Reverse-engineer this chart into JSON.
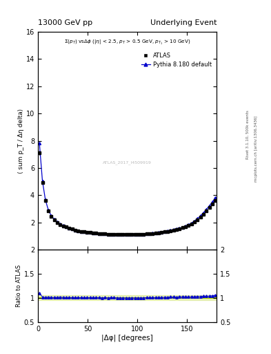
{
  "title_left": "13000 GeV pp",
  "title_right": "Underlying Event",
  "right_label_top": "Rivet 3.1.10, 500k events",
  "right_label_bottom": "mcplots.cern.ch [arXiv:1306.3436]",
  "watermark": "ATLAS_2017_I4509919",
  "xlabel": "|Δφ| [degrees]",
  "ylabel": "⟨ sum p_T / Δη delta⟩",
  "ylabel_ratio": "Ratio to ATLAS",
  "ylim_main": [
    0,
    16
  ],
  "ylim_ratio": [
    0.5,
    2.0
  ],
  "yticks_main": [
    2,
    4,
    6,
    8,
    10,
    12,
    14,
    16
  ],
  "yticks_ratio": [
    0.5,
    1.0,
    1.5,
    2.0
  ],
  "xlim": [
    0,
    180
  ],
  "xticks": [
    0,
    50,
    100,
    150
  ],
  "data_x": [
    1.5,
    4.5,
    7.5,
    10.5,
    13.5,
    16.5,
    19.5,
    22.5,
    25.5,
    28.5,
    31.5,
    34.5,
    37.5,
    40.5,
    43.5,
    46.5,
    49.5,
    52.5,
    55.5,
    58.5,
    61.5,
    64.5,
    67.5,
    70.5,
    73.5,
    76.5,
    79.5,
    82.5,
    85.5,
    88.5,
    91.5,
    94.5,
    97.5,
    100.5,
    103.5,
    106.5,
    109.5,
    112.5,
    115.5,
    118.5,
    121.5,
    124.5,
    127.5,
    130.5,
    133.5,
    136.5,
    139.5,
    142.5,
    145.5,
    148.5,
    151.5,
    154.5,
    157.5,
    160.5,
    163.5,
    166.5,
    169.5,
    172.5,
    175.5,
    178.5
  ],
  "data_y": [
    7.1,
    4.95,
    3.6,
    2.85,
    2.45,
    2.2,
    2.0,
    1.85,
    1.75,
    1.65,
    1.55,
    1.5,
    1.42,
    1.38,
    1.33,
    1.3,
    1.27,
    1.25,
    1.22,
    1.2,
    1.18,
    1.17,
    1.15,
    1.14,
    1.13,
    1.12,
    1.12,
    1.11,
    1.11,
    1.1,
    1.11,
    1.11,
    1.12,
    1.12,
    1.13,
    1.14,
    1.15,
    1.17,
    1.19,
    1.21,
    1.23,
    1.27,
    1.3,
    1.33,
    1.37,
    1.42,
    1.47,
    1.52,
    1.6,
    1.68,
    1.78,
    1.9,
    2.05,
    2.2,
    2.4,
    2.6,
    2.85,
    3.1,
    3.35,
    3.6
  ],
  "data_yerr": [
    0.15,
    0.08,
    0.06,
    0.05,
    0.04,
    0.04,
    0.03,
    0.03,
    0.03,
    0.02,
    0.02,
    0.02,
    0.02,
    0.02,
    0.02,
    0.02,
    0.02,
    0.02,
    0.02,
    0.02,
    0.02,
    0.02,
    0.02,
    0.02,
    0.02,
    0.02,
    0.02,
    0.02,
    0.02,
    0.02,
    0.02,
    0.02,
    0.02,
    0.02,
    0.02,
    0.02,
    0.02,
    0.02,
    0.02,
    0.02,
    0.02,
    0.02,
    0.02,
    0.02,
    0.02,
    0.02,
    0.02,
    0.02,
    0.02,
    0.02,
    0.03,
    0.03,
    0.03,
    0.04,
    0.04,
    0.05,
    0.06,
    0.07,
    0.08,
    0.1
  ],
  "mc_x": [
    1.5,
    4.5,
    7.5,
    10.5,
    13.5,
    16.5,
    19.5,
    22.5,
    25.5,
    28.5,
    31.5,
    34.5,
    37.5,
    40.5,
    43.5,
    46.5,
    49.5,
    52.5,
    55.5,
    58.5,
    61.5,
    64.5,
    67.5,
    70.5,
    73.5,
    76.5,
    79.5,
    82.5,
    85.5,
    88.5,
    91.5,
    94.5,
    97.5,
    100.5,
    103.5,
    106.5,
    109.5,
    112.5,
    115.5,
    118.5,
    121.5,
    124.5,
    127.5,
    130.5,
    133.5,
    136.5,
    139.5,
    142.5,
    145.5,
    148.5,
    151.5,
    154.5,
    157.5,
    160.5,
    163.5,
    166.5,
    169.5,
    172.5,
    175.5,
    178.5
  ],
  "mc_y": [
    7.8,
    5.05,
    3.65,
    2.9,
    2.47,
    2.22,
    2.02,
    1.88,
    1.77,
    1.67,
    1.57,
    1.51,
    1.43,
    1.39,
    1.34,
    1.31,
    1.28,
    1.26,
    1.23,
    1.21,
    1.19,
    1.17,
    1.16,
    1.14,
    1.14,
    1.13,
    1.12,
    1.11,
    1.11,
    1.1,
    1.11,
    1.11,
    1.12,
    1.12,
    1.13,
    1.14,
    1.16,
    1.18,
    1.2,
    1.22,
    1.25,
    1.28,
    1.32,
    1.35,
    1.4,
    1.45,
    1.5,
    1.56,
    1.64,
    1.72,
    1.82,
    1.95,
    2.1,
    2.27,
    2.47,
    2.7,
    2.95,
    3.22,
    3.5,
    3.8
  ],
  "mc_yerr": [
    0.12,
    0.07,
    0.05,
    0.04,
    0.03,
    0.03,
    0.02,
    0.02,
    0.02,
    0.02,
    0.02,
    0.02,
    0.02,
    0.02,
    0.02,
    0.02,
    0.02,
    0.02,
    0.02,
    0.02,
    0.02,
    0.02,
    0.02,
    0.02,
    0.02,
    0.02,
    0.02,
    0.02,
    0.02,
    0.02,
    0.02,
    0.02,
    0.02,
    0.02,
    0.02,
    0.02,
    0.02,
    0.02,
    0.02,
    0.02,
    0.02,
    0.02,
    0.02,
    0.02,
    0.02,
    0.02,
    0.02,
    0.02,
    0.02,
    0.02,
    0.02,
    0.03,
    0.03,
    0.03,
    0.04,
    0.04,
    0.05,
    0.05,
    0.06,
    0.08
  ],
  "ratio_y": [
    1.1,
    1.02,
    1.01,
    1.02,
    1.01,
    1.01,
    1.01,
    1.02,
    1.01,
    1.01,
    1.01,
    1.007,
    1.007,
    1.007,
    1.007,
    1.007,
    1.007,
    1.008,
    1.008,
    1.008,
    1.008,
    1.0,
    1.007,
    1.0,
    1.008,
    1.008,
    1.0,
    1.0,
    1.0,
    1.0,
    1.0,
    1.0,
    1.0,
    1.0,
    1.0,
    1.0,
    1.009,
    1.009,
    1.008,
    1.008,
    1.016,
    1.008,
    1.015,
    1.015,
    1.022,
    1.021,
    1.02,
    1.026,
    1.025,
    1.024,
    1.022,
    1.026,
    1.024,
    1.032,
    1.029,
    1.038,
    1.035,
    1.039,
    1.045,
    1.056
  ],
  "ratio_err": [
    0.025,
    0.018,
    0.015,
    0.015,
    0.014,
    0.013,
    0.012,
    0.012,
    0.012,
    0.012,
    0.012,
    0.012,
    0.012,
    0.012,
    0.012,
    0.012,
    0.012,
    0.012,
    0.012,
    0.012,
    0.012,
    0.012,
    0.012,
    0.012,
    0.012,
    0.012,
    0.012,
    0.012,
    0.012,
    0.012,
    0.012,
    0.012,
    0.012,
    0.012,
    0.012,
    0.012,
    0.012,
    0.012,
    0.012,
    0.012,
    0.012,
    0.012,
    0.012,
    0.012,
    0.012,
    0.012,
    0.012,
    0.012,
    0.012,
    0.012,
    0.012,
    0.012,
    0.012,
    0.012,
    0.013,
    0.013,
    0.014,
    0.015,
    0.016,
    0.018
  ],
  "data_color": "#000000",
  "mc_color": "#0000cc",
  "ref_line_color": "#aacc00",
  "background_color": "#ffffff"
}
